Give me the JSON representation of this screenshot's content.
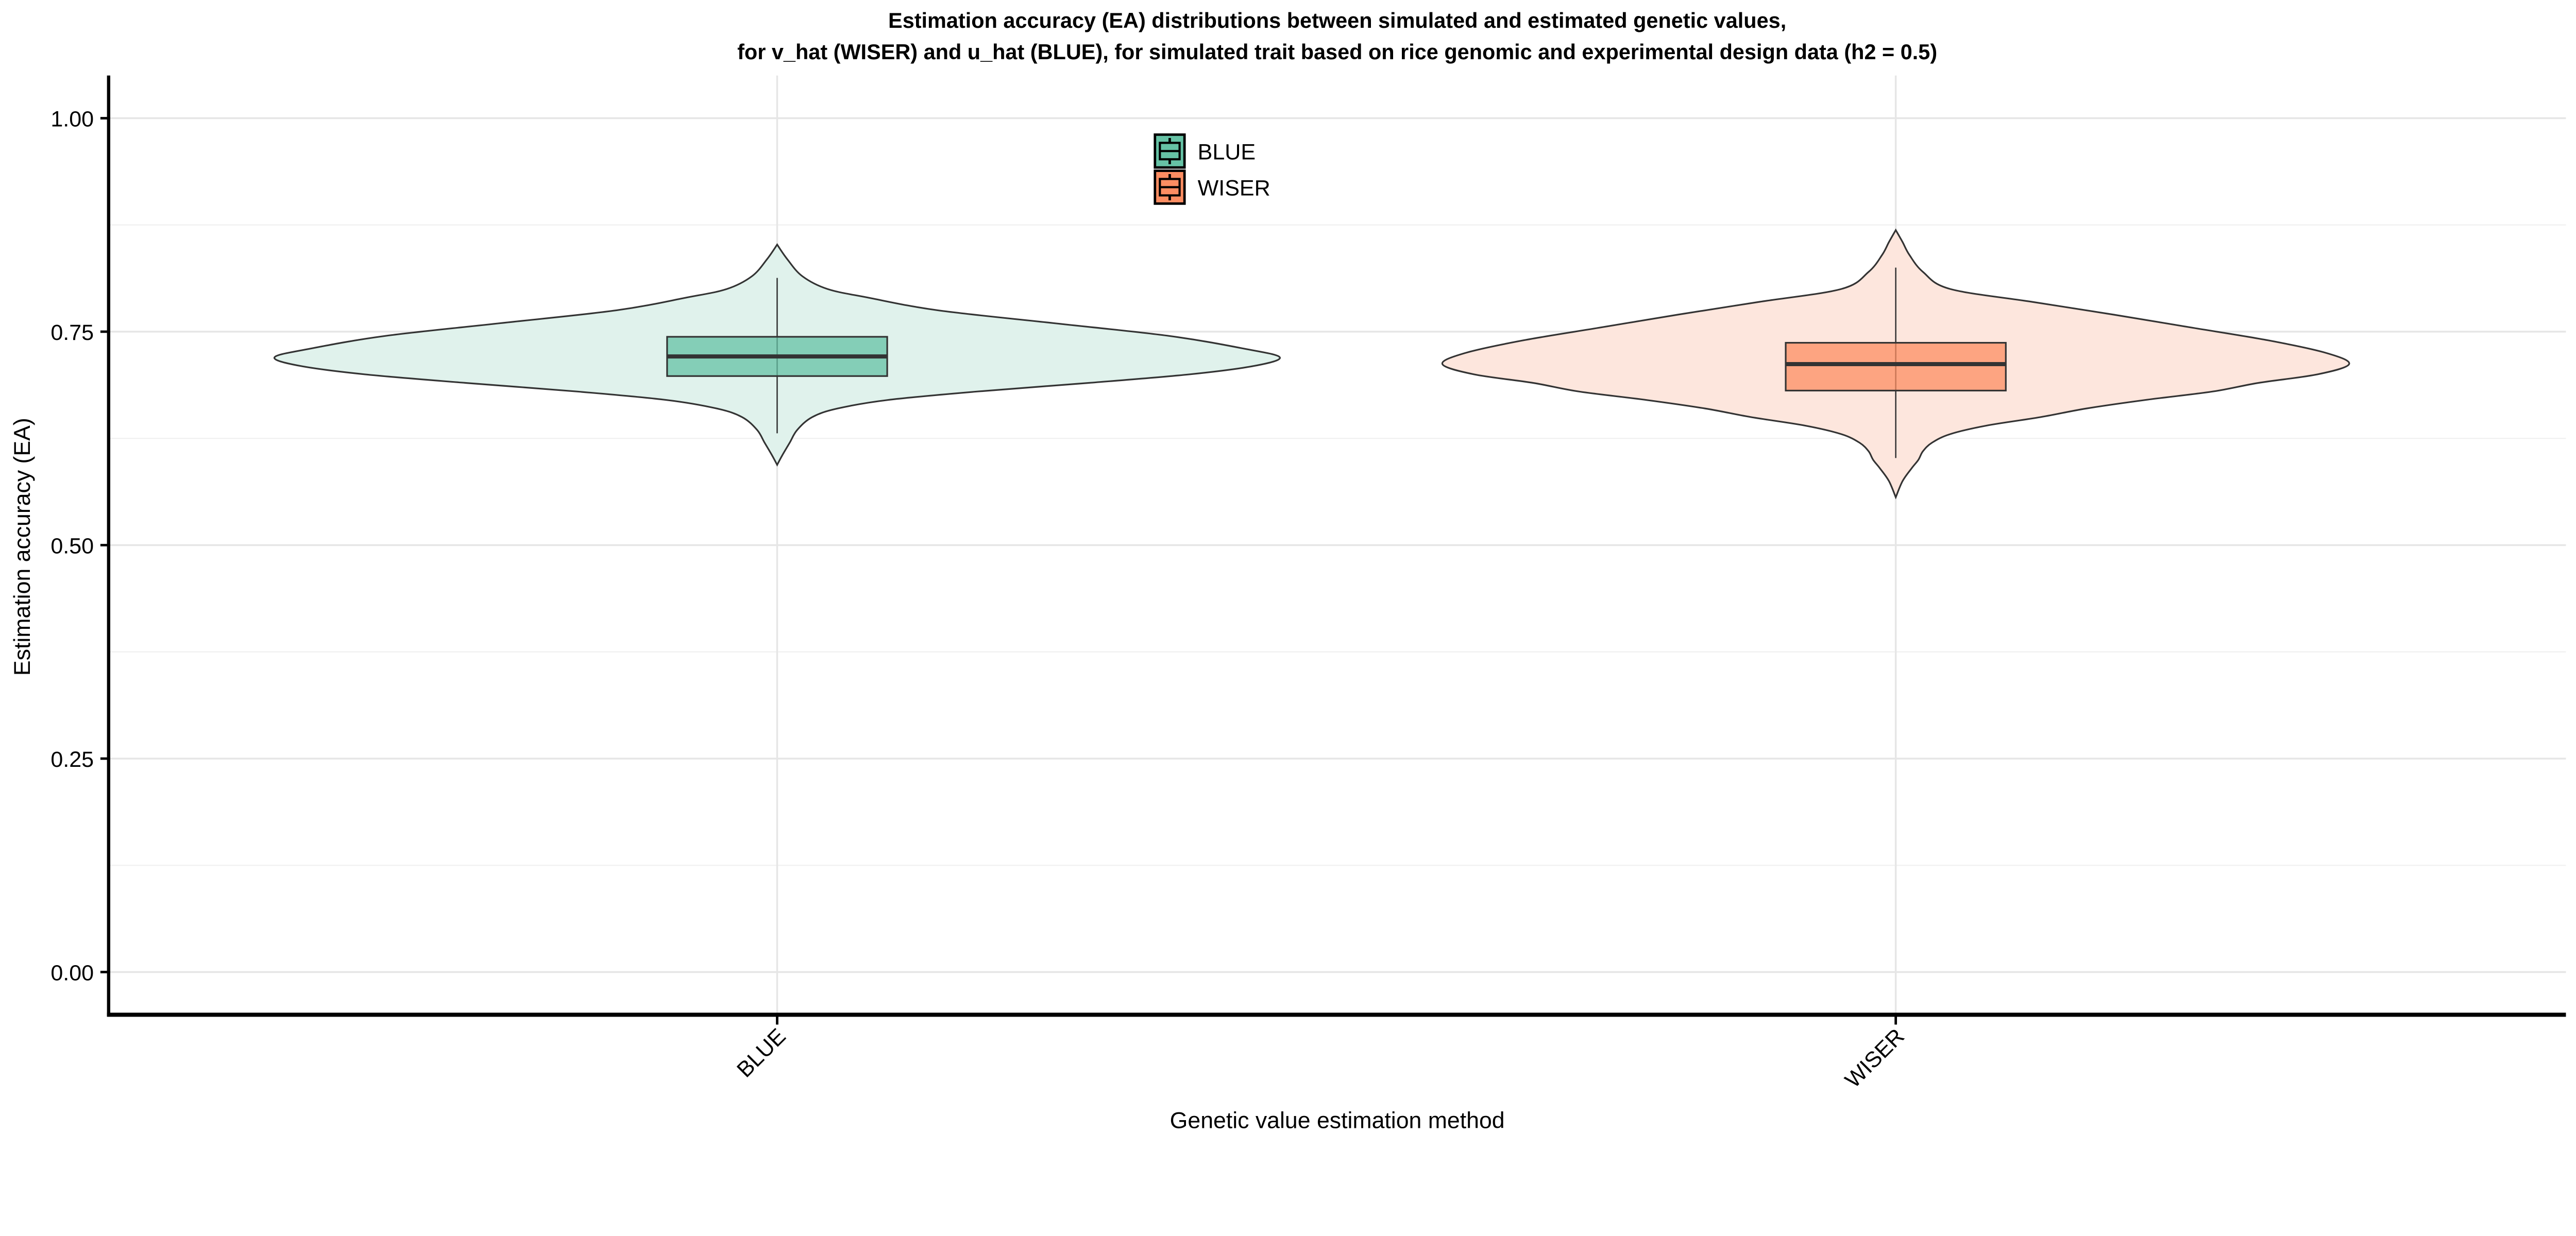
{
  "chart_data": {
    "type": "violin",
    "title_lines": [
      "Estimation accuracy (EA) distributions between simulated and estimated genetic values,",
      "for v_hat (WISER) and u_hat (BLUE), for simulated trait based on rice genomic and experimental design data (h2 = 0.5)"
    ],
    "xlabel": "Genetic value estimation method",
    "ylabel": "Estimation accuracy (EA)",
    "ylim": [
      -0.05,
      1.05
    ],
    "yticks": [
      0.0,
      0.25,
      0.5,
      0.75,
      1.0
    ],
    "ytick_labels": [
      "0.00",
      "0.25",
      "0.50",
      "0.75",
      "1.00"
    ],
    "grid": true,
    "legend": {
      "placement": "top-center",
      "entries": [
        "BLUE",
        "WISER"
      ]
    },
    "categories": [
      "BLUE",
      "WISER"
    ],
    "series": [
      {
        "name": "BLUE",
        "color": "#66c2a5",
        "violin_fill": "#e0f2ec",
        "box": {
          "whisker_low": 0.631,
          "q1": 0.698,
          "median": 0.721,
          "q3": 0.744,
          "whisker_high": 0.813
        },
        "density_profile": [
          [
            0.852,
            0
          ],
          [
            0.835,
            0.02
          ],
          [
            0.815,
            0.05
          ],
          [
            0.8,
            0.1
          ],
          [
            0.79,
            0.18
          ],
          [
            0.775,
            0.32
          ],
          [
            0.76,
            0.55
          ],
          [
            0.745,
            0.78
          ],
          [
            0.73,
            0.93
          ],
          [
            0.72,
            1.0
          ],
          [
            0.71,
            0.95
          ],
          [
            0.7,
            0.82
          ],
          [
            0.69,
            0.62
          ],
          [
            0.68,
            0.4
          ],
          [
            0.67,
            0.22
          ],
          [
            0.66,
            0.12
          ],
          [
            0.65,
            0.07
          ],
          [
            0.635,
            0.04
          ],
          [
            0.62,
            0.025
          ],
          [
            0.605,
            0.01
          ],
          [
            0.594,
            0
          ]
        ]
      },
      {
        "name": "WISER",
        "color": "#fc8d62",
        "violin_fill": "#fde6dd",
        "box": {
          "whisker_low": 0.602,
          "q1": 0.681,
          "median": 0.712,
          "q3": 0.737,
          "whisker_high": 0.825
        },
        "density_profile": [
          [
            0.869,
            0
          ],
          [
            0.855,
            0.015
          ],
          [
            0.84,
            0.03
          ],
          [
            0.82,
            0.06
          ],
          [
            0.8,
            0.12
          ],
          [
            0.785,
            0.3
          ],
          [
            0.77,
            0.48
          ],
          [
            0.755,
            0.65
          ],
          [
            0.74,
            0.82
          ],
          [
            0.725,
            0.95
          ],
          [
            0.712,
            1.0
          ],
          [
            0.7,
            0.93
          ],
          [
            0.69,
            0.8
          ],
          [
            0.68,
            0.7
          ],
          [
            0.67,
            0.55
          ],
          [
            0.66,
            0.42
          ],
          [
            0.65,
            0.32
          ],
          [
            0.64,
            0.2
          ],
          [
            0.63,
            0.12
          ],
          [
            0.62,
            0.08
          ],
          [
            0.61,
            0.06
          ],
          [
            0.6,
            0.05
          ],
          [
            0.59,
            0.035
          ],
          [
            0.575,
            0.015
          ],
          [
            0.556,
            0
          ]
        ]
      }
    ]
  }
}
